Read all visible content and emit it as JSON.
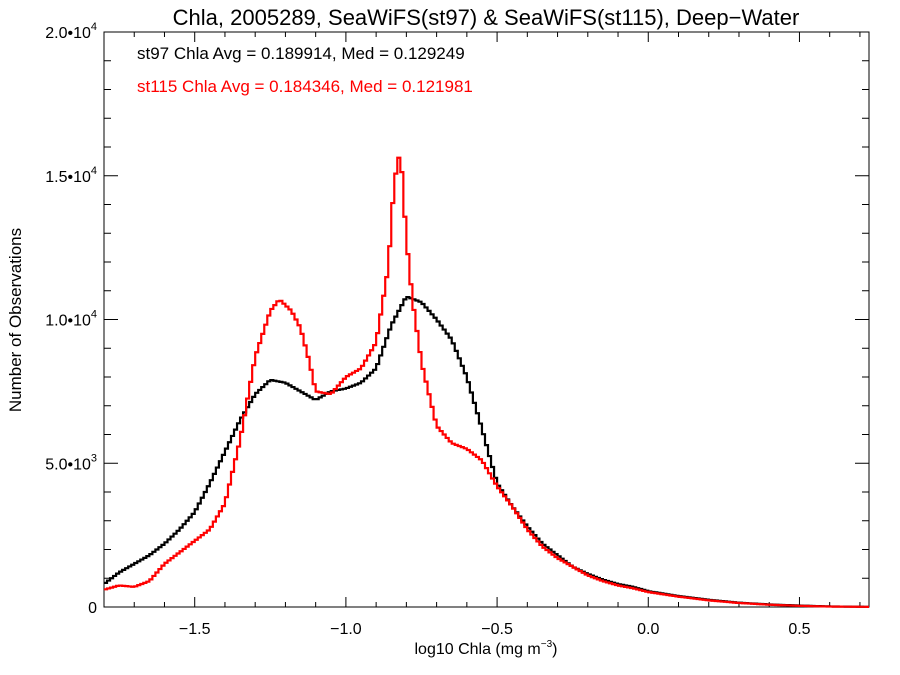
{
  "chart_data": {
    "type": "line",
    "title": "Chla, 2005289, SeaWiFS(st97) & SeaWiFS(st115), Deep−Water",
    "xlabel_main": "log10 Chla (mg m",
    "xlabel_sup": "−3",
    "xlabel_tail": ")",
    "ylabel": "Number of Observations",
    "xlim": [
      -1.8,
      0.73
    ],
    "ylim": [
      0,
      20000
    ],
    "x_ticks": [
      {
        "value": -1.5,
        "label": "−1.5"
      },
      {
        "value": -1.0,
        "label": "−1.0"
      },
      {
        "value": -0.5,
        "label": "−0.5"
      },
      {
        "value": 0.0,
        "label": "0.0"
      },
      {
        "value": 0.5,
        "label": "0.5"
      }
    ],
    "y_ticks": [
      {
        "value": 0,
        "base": "0",
        "exp": ""
      },
      {
        "value": 5000,
        "base": "5.0•10",
        "exp": "3"
      },
      {
        "value": 10000,
        "base": "1.0•10",
        "exp": "4"
      },
      {
        "value": 15000,
        "base": "1.5•10",
        "exp": "4"
      },
      {
        "value": 20000,
        "base": "2.0•10",
        "exp": "4"
      }
    ],
    "grid": false,
    "legend_position": "top-left",
    "series": [
      {
        "name": "st97",
        "annotation": "st97 Chla Avg = 0.189914, Med = 0.129249",
        "color": "#000000",
        "points": [
          [
            -1.8,
            800
          ],
          [
            -1.75,
            1200
          ],
          [
            -1.7,
            1500
          ],
          [
            -1.65,
            1800
          ],
          [
            -1.6,
            2200
          ],
          [
            -1.55,
            2700
          ],
          [
            -1.5,
            3300
          ],
          [
            -1.45,
            4300
          ],
          [
            -1.4,
            5400
          ],
          [
            -1.35,
            6500
          ],
          [
            -1.3,
            7400
          ],
          [
            -1.25,
            7900
          ],
          [
            -1.2,
            7800
          ],
          [
            -1.15,
            7500
          ],
          [
            -1.1,
            7200
          ],
          [
            -1.05,
            7500
          ],
          [
            -1.0,
            7600
          ],
          [
            -0.95,
            7800
          ],
          [
            -0.9,
            8300
          ],
          [
            -0.85,
            9800
          ],
          [
            -0.8,
            10800
          ],
          [
            -0.75,
            10600
          ],
          [
            -0.7,
            10000
          ],
          [
            -0.65,
            9300
          ],
          [
            -0.6,
            8000
          ],
          [
            -0.55,
            6200
          ],
          [
            -0.5,
            4300
          ],
          [
            -0.45,
            3500
          ],
          [
            -0.4,
            2800
          ],
          [
            -0.35,
            2200
          ],
          [
            -0.3,
            1800
          ],
          [
            -0.25,
            1400
          ],
          [
            -0.2,
            1150
          ],
          [
            -0.15,
            950
          ],
          [
            -0.1,
            800
          ],
          [
            -0.05,
            700
          ],
          [
            0.0,
            550
          ],
          [
            0.1,
            380
          ],
          [
            0.2,
            250
          ],
          [
            0.3,
            150
          ],
          [
            0.4,
            90
          ],
          [
            0.5,
            50
          ],
          [
            0.6,
            20
          ],
          [
            0.73,
            5
          ]
        ]
      },
      {
        "name": "st115",
        "annotation": "st115 Chla Avg = 0.184346, Med = 0.121981",
        "color": "#ff0000",
        "points": [
          [
            -1.8,
            600
          ],
          [
            -1.75,
            750
          ],
          [
            -1.7,
            700
          ],
          [
            -1.65,
            900
          ],
          [
            -1.6,
            1500
          ],
          [
            -1.55,
            1900
          ],
          [
            -1.5,
            2300
          ],
          [
            -1.45,
            2700
          ],
          [
            -1.4,
            3600
          ],
          [
            -1.35,
            5800
          ],
          [
            -1.3,
            8700
          ],
          [
            -1.25,
            10300
          ],
          [
            -1.22,
            10700
          ],
          [
            -1.18,
            10300
          ],
          [
            -1.15,
            9700
          ],
          [
            -1.12,
            8500
          ],
          [
            -1.1,
            7500
          ],
          [
            -1.05,
            7400
          ],
          [
            -1.0,
            8000
          ],
          [
            -0.95,
            8300
          ],
          [
            -0.9,
            9200
          ],
          [
            -0.86,
            11800
          ],
          [
            -0.84,
            14800
          ],
          [
            -0.82,
            15900
          ],
          [
            -0.8,
            12800
          ],
          [
            -0.78,
            10700
          ],
          [
            -0.75,
            8500
          ],
          [
            -0.7,
            6300
          ],
          [
            -0.65,
            5700
          ],
          [
            -0.6,
            5500
          ],
          [
            -0.55,
            5100
          ],
          [
            -0.5,
            4200
          ],
          [
            -0.45,
            3500
          ],
          [
            -0.4,
            2700
          ],
          [
            -0.35,
            2100
          ],
          [
            -0.3,
            1700
          ],
          [
            -0.25,
            1400
          ],
          [
            -0.2,
            1100
          ],
          [
            -0.15,
            900
          ],
          [
            -0.1,
            750
          ],
          [
            -0.05,
            650
          ],
          [
            0.0,
            520
          ],
          [
            0.1,
            360
          ],
          [
            0.2,
            230
          ],
          [
            0.3,
            140
          ],
          [
            0.4,
            80
          ],
          [
            0.5,
            40
          ],
          [
            0.6,
            15
          ],
          [
            0.73,
            5
          ]
        ]
      }
    ]
  }
}
